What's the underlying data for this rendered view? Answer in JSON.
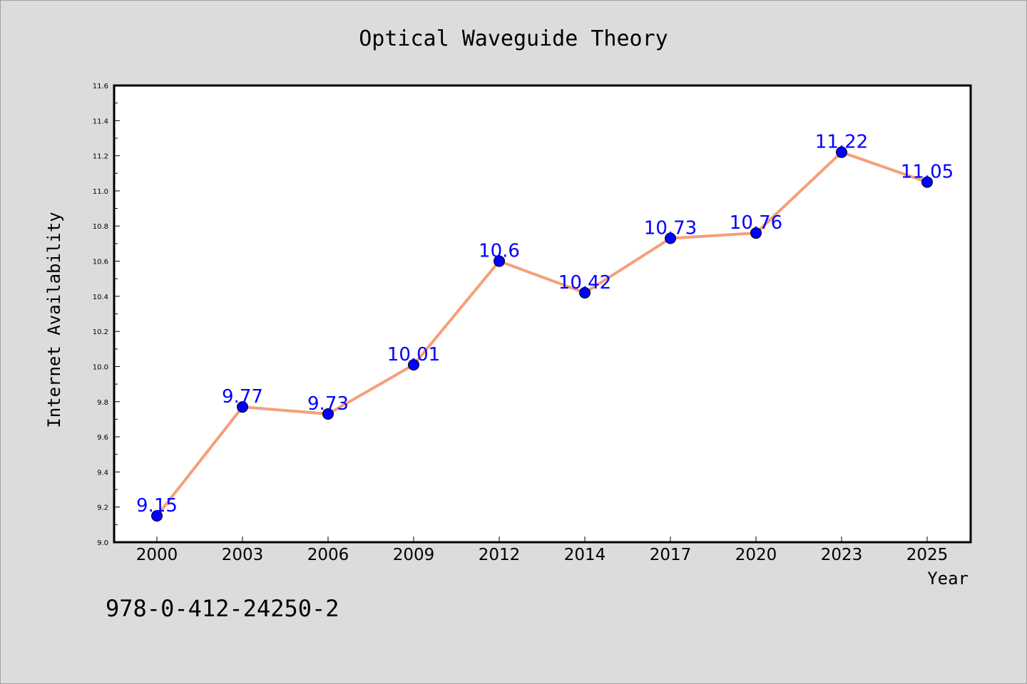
{
  "chart_data": {
    "type": "line",
    "title": "Optical Waveguide Theory",
    "xlabel": "Year",
    "ylabel": "Internet Availability",
    "categories": [
      "2000",
      "2003",
      "2006",
      "2009",
      "2012",
      "2014",
      "2017",
      "2020",
      "2023",
      "2025"
    ],
    "series": [
      {
        "values": [
          9.15,
          9.77,
          9.73,
          10.01,
          10.6,
          10.42,
          10.73,
          10.76,
          11.22,
          11.05
        ],
        "data_labels": [
          "9.15",
          "9.77",
          "9.73",
          "10.01",
          "10.6",
          "10.42",
          "10.73",
          "10.76",
          "11.22",
          "11.05"
        ],
        "line_color": "#f4a07a",
        "marker_color": "#0000ff"
      }
    ],
    "ylim": [
      9.0,
      11.6
    ],
    "yticks": [
      "9.0",
      "9.2",
      "9.4",
      "9.6",
      "9.8",
      "10.0",
      "10.2",
      "10.4",
      "10.6",
      "10.8",
      "11.0",
      "11.2",
      "11.4",
      "11.6"
    ],
    "grid": false,
    "legend": "none"
  },
  "footer": {
    "isbn": "978-0-412-24250-2"
  },
  "colors": {
    "background": "#dcdcdc",
    "plot_background": "#ffffff",
    "line": "#f4a07a",
    "marker": "#0000ff",
    "data_label": "#0000ff"
  }
}
